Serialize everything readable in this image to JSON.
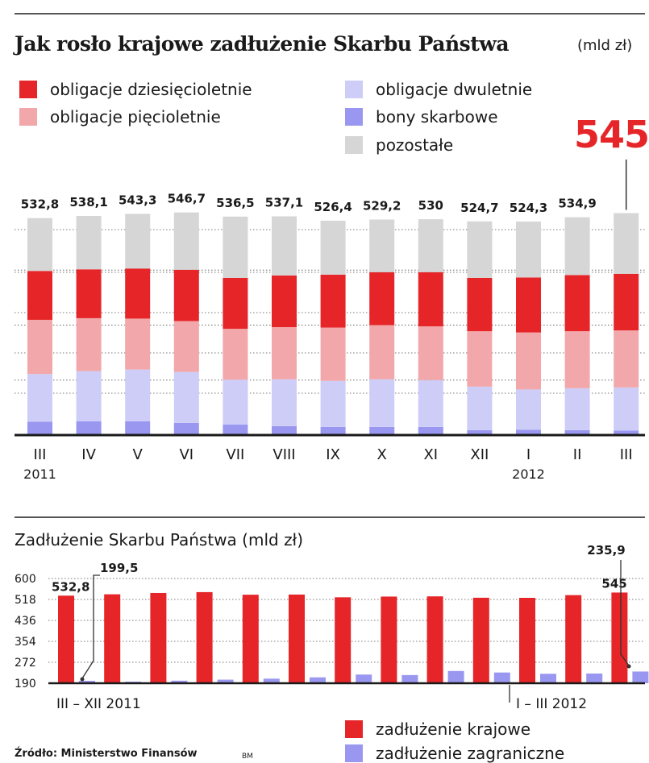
{
  "title": "Jak rosło krajowe zadłużenie Skarbu Państwa",
  "unit": "(mld zł)",
  "highlight_total": "545",
  "legend_top": [
    {
      "label": "obligacje dziesięcioletnie",
      "color": "#e52528"
    },
    {
      "label": "obligacje pięcioletnie",
      "color": "#f2a7aa"
    },
    {
      "label": "obligacje dwuletnie",
      "color": "#cdcdf7"
    },
    {
      "label": "bony skarbowe",
      "color": "#9a97f0"
    },
    {
      "label": "pozostałe",
      "color": "#d6d6d6"
    }
  ],
  "subtitle": "Zadłużenie Skarbu Państwa (mld zł)",
  "period_1": "III – XII 2011",
  "period_2": "I – III 2012",
  "legend_bottom": [
    {
      "label": "zadłużenie krajowe",
      "color": "#e52528"
    },
    {
      "label": "zadłużenie zagraniczne",
      "color": "#9a97f0"
    }
  ],
  "source": "Źródło: Ministerstwo Finansów",
  "credit": "BM",
  "chart_data": [
    {
      "type": "bar",
      "stacked": true,
      "title": "Jak rosło krajowe zadłużenie Skarbu Państwa",
      "unit": "(mld zł)",
      "categories": [
        "III",
        "IV",
        "V",
        "VI",
        "VII",
        "VIII",
        "IX",
        "X",
        "XI",
        "XII",
        "I",
        "II",
        "III"
      ],
      "year_labels": [
        {
          "index": 0,
          "label": "2011"
        },
        {
          "index": 10,
          "label": "2012"
        }
      ],
      "totals": [
        532.8,
        538.1,
        543.3,
        546.7,
        536.5,
        537.1,
        526.4,
        529.2,
        530,
        524.7,
        524.3,
        534.9,
        545
      ],
      "total_labels": [
        "532,8",
        "538,1",
        "543,3",
        "546,7",
        "536,5",
        "537,1",
        "526,4",
        "529,2",
        "530",
        "524,7",
        "524,3",
        "534,9",
        "545"
      ],
      "series": [
        {
          "name": "bony skarbowe",
          "color": "#9a97f0",
          "values": [
            33,
            34,
            34,
            30,
            26,
            22,
            20,
            20,
            20,
            12,
            13,
            12,
            11
          ]
        },
        {
          "name": "obligacje dwuletnie",
          "color": "#cdcdf7",
          "values": [
            117,
            123,
            127,
            125,
            110,
            115,
            113,
            117,
            115,
            107,
            99,
            103,
            106
          ]
        },
        {
          "name": "obligacje pięcioletnie",
          "color": "#f2a7aa",
          "values": [
            133,
            130,
            125,
            125,
            125,
            128,
            131,
            133,
            132,
            136,
            140,
            140,
            140
          ]
        },
        {
          "name": "obligacje dziesięcioletnie",
          "color": "#e52528",
          "values": [
            120,
            120,
            123,
            126,
            125,
            127,
            130,
            130,
            133,
            131,
            135,
            138,
            139
          ]
        },
        {
          "name": "pozostałe",
          "color": "#d6d6d6",
          "values": [
            129.8,
            131.1,
            134.3,
            140.7,
            150.5,
            145.1,
            132.4,
            129.2,
            130,
            138.7,
            137.3,
            141.9,
            149
          ]
        }
      ],
      "ylim": [
        0,
        560
      ],
      "grid": true
    },
    {
      "type": "bar",
      "title": "Zadłużenie Skarbu Państwa (mld zł)",
      "categories": [
        "III",
        "IV",
        "V",
        "VI",
        "VII",
        "VIII",
        "IX",
        "X",
        "XI",
        "XII",
        "I",
        "II",
        "III"
      ],
      "series": [
        {
          "name": "zadłużenie krajowe",
          "color": "#e52528",
          "values": [
            532.8,
            538.1,
            543.3,
            546.7,
            536.5,
            537.1,
            526.4,
            529.2,
            530,
            524.7,
            524.3,
            534.9,
            545
          ]
        },
        {
          "name": "zadłużenie zagraniczne",
          "color": "#9a97f0",
          "values": [
            199.5,
            196,
            200,
            204,
            208,
            213,
            224,
            222,
            238,
            232,
            227,
            228,
            235.9
          ]
        }
      ],
      "annotations": [
        {
          "series": "zadłużenie krajowe",
          "index": 0,
          "label": "532,8"
        },
        {
          "series": "zadłużenie zagraniczne",
          "index": 0,
          "label": "199,5"
        },
        {
          "series": "zadłużenie krajowe",
          "index": 12,
          "label": "545"
        },
        {
          "series": "zadłużenie zagraniczne",
          "index": 12,
          "label": "235,9"
        }
      ],
      "yticks": [
        190,
        272,
        354,
        436,
        518,
        600
      ],
      "ylim": [
        190,
        600
      ],
      "grid": true
    }
  ]
}
